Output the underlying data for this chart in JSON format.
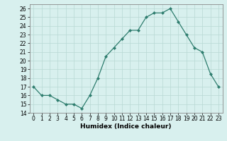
{
  "x": [
    0,
    1,
    2,
    3,
    4,
    5,
    6,
    7,
    8,
    9,
    10,
    11,
    12,
    13,
    14,
    15,
    16,
    17,
    18,
    19,
    20,
    21,
    22,
    23
  ],
  "y": [
    17.0,
    16.0,
    16.0,
    15.5,
    15.0,
    15.0,
    14.5,
    16.0,
    18.0,
    20.5,
    21.5,
    22.5,
    23.5,
    23.5,
    25.0,
    25.5,
    25.5,
    26.0,
    24.5,
    23.0,
    21.5,
    21.0,
    18.5,
    17.0
  ],
  "xlabel": "Humidex (Indice chaleur)",
  "xlim": [
    -0.5,
    23.5
  ],
  "ylim": [
    14,
    26.5
  ],
  "yticks": [
    14,
    15,
    16,
    17,
    18,
    19,
    20,
    21,
    22,
    23,
    24,
    25,
    26
  ],
  "xticks": [
    0,
    1,
    2,
    3,
    4,
    5,
    6,
    7,
    8,
    9,
    10,
    11,
    12,
    13,
    14,
    15,
    16,
    17,
    18,
    19,
    20,
    21,
    22,
    23
  ],
  "line_color": "#2e7d6e",
  "marker_color": "#2e7d6e",
  "bg_color": "#d8f0ee",
  "grid_color": "#b8d8d4",
  "fig_bg": "#d8f0ee",
  "tick_fontsize": 5.5,
  "xlabel_fontsize": 6.5
}
